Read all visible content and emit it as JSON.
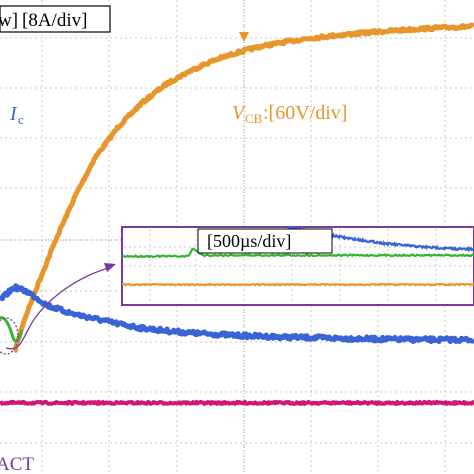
{
  "labels": {
    "top_scale_left": "w]",
    "top_scale_current": "[8A/div]",
    "ic_symbol": "I",
    "ic_sub": "c",
    "vcb_symbol": "V",
    "vcb_sub": "CB",
    "vcb_scale": ":[60V/div]",
    "inset_timebase": "[500µs/div]",
    "bottom_label": "ACT"
  },
  "colors": {
    "vcb": "#e8962b",
    "ic": "#3a63d6",
    "green_trace": "#33b533",
    "magenta_trace": "#d01778",
    "inset_frame": "#7a3aa0",
    "grid": "#c8c8c8",
    "frame": "#222222"
  },
  "chart_data": [
    {
      "type": "line",
      "title": "",
      "xlabel": "",
      "ylabel": "",
      "grid": true,
      "xlim": [
        0,
        10
      ],
      "ylim": [
        0,
        9
      ],
      "series": [
        {
          "name": "V_CB [60V/div]",
          "x": [
            0.3,
            0.5,
            0.8,
            1.2,
            1.6,
            2.0,
            2.5,
            3.0,
            3.5,
            4.0,
            4.5,
            5.0,
            5.5,
            6.0,
            6.5,
            7.0,
            7.5,
            8.0,
            8.5,
            9.0,
            9.5,
            10.0
          ],
          "y": [
            2.3,
            2.9,
            3.6,
            4.5,
            5.3,
            6.0,
            6.6,
            7.05,
            7.4,
            7.65,
            7.85,
            8.0,
            8.12,
            8.2,
            8.27,
            8.32,
            8.36,
            8.4,
            8.43,
            8.46,
            8.48,
            8.5
          ]
        },
        {
          "name": "I_c [8A/div]",
          "x": [
            0.0,
            0.3,
            0.6,
            1.0,
            1.5,
            2.0,
            2.5,
            3.0,
            3.5,
            4.0,
            5.0,
            6.0,
            7.0,
            8.0,
            9.0,
            10.0
          ],
          "y": [
            3.3,
            3.55,
            3.45,
            3.2,
            3.05,
            2.95,
            2.85,
            2.77,
            2.72,
            2.68,
            2.63,
            2.6,
            2.58,
            2.56,
            2.55,
            2.55
          ]
        },
        {
          "name": "",
          "x": [
            0.0,
            10.0
          ],
          "y": [
            1.35,
            1.35
          ]
        }
      ]
    },
    {
      "type": "line",
      "title": "[500µs/div]",
      "grid": true,
      "xlim": [
        0,
        10
      ],
      "ylim": [
        0,
        4
      ],
      "series": [
        {
          "name": "",
          "x": [
            4.7,
            5.5,
            6.5,
            7.5,
            8.5,
            9.5,
            10.0
          ],
          "y": [
            4.0,
            3.7,
            3.4,
            3.15,
            2.98,
            2.88,
            2.85
          ]
        },
        {
          "name": "",
          "x": [
            0.0,
            1.9,
            2.0,
            2.3,
            10.0
          ],
          "y": [
            2.5,
            2.5,
            2.9,
            2.55,
            2.55
          ]
        },
        {
          "name": "",
          "x": [
            0.0,
            10.0
          ],
          "y": [
            1.05,
            1.05
          ]
        }
      ]
    }
  ]
}
